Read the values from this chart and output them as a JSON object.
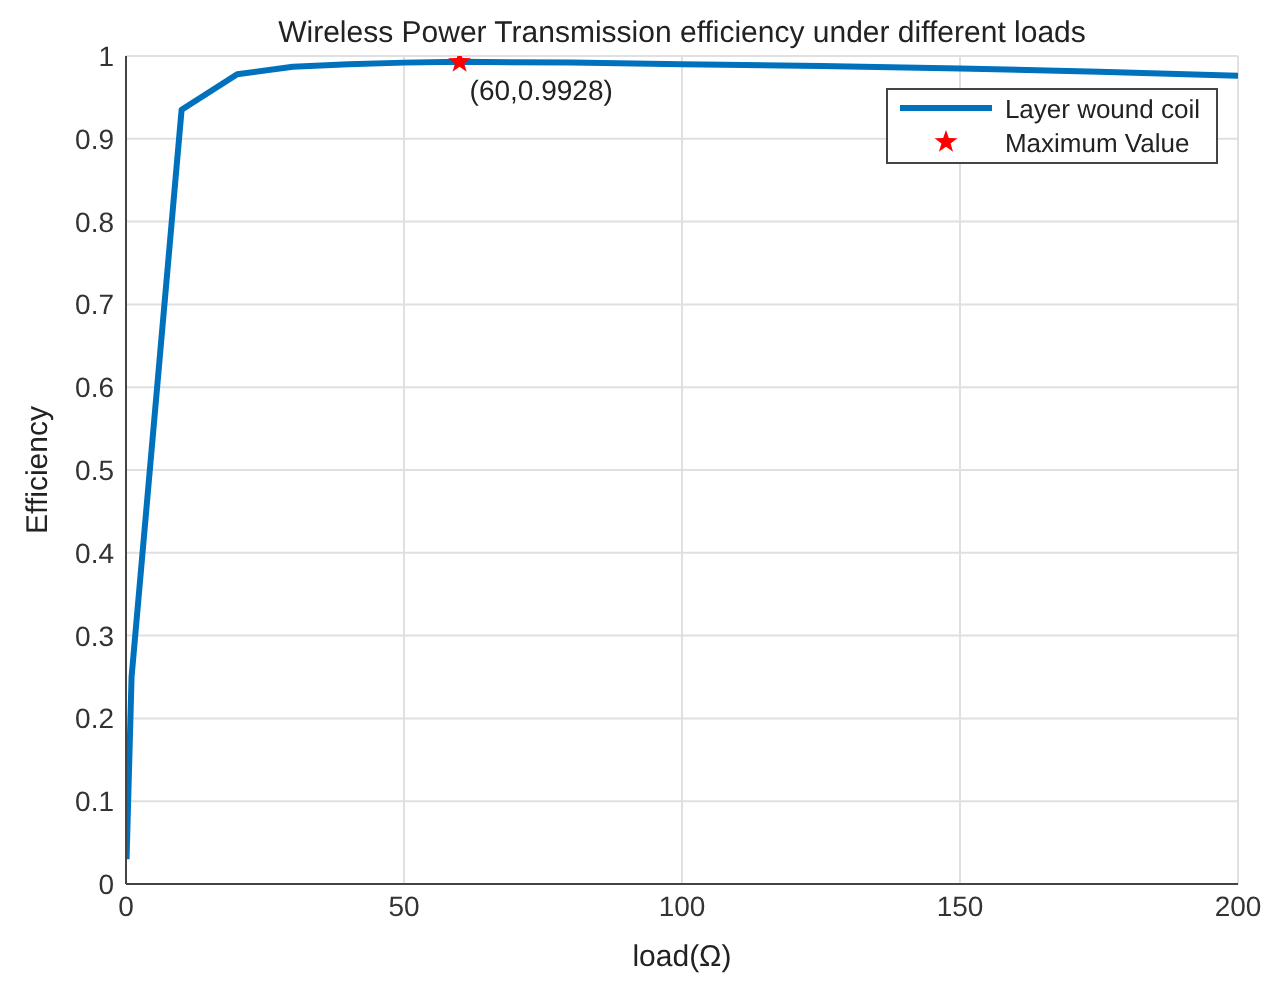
{
  "chart_data": {
    "type": "line",
    "title": "Wireless Power Transmission efficiency under different loads",
    "xlabel": "load(Ω)",
    "ylabel": "Efficiency",
    "xlim": [
      0,
      200
    ],
    "xticks": [
      0,
      50,
      100,
      150,
      200
    ],
    "ylim": [
      0,
      1
    ],
    "yticks": [
      0,
      0.1,
      0.2,
      0.3,
      0.4,
      0.5,
      0.6,
      0.7,
      0.8,
      0.9,
      1
    ],
    "grid": true,
    "legend": "top right",
    "series": [
      {
        "name": "Layer wound coil",
        "color": "#0072bd",
        "marker": "none",
        "x": [
          0.1,
          1,
          10,
          20,
          30,
          40,
          50,
          60,
          80,
          100,
          125,
          150,
          175,
          200
        ],
        "values": [
          0.03,
          0.25,
          0.935,
          0.978,
          0.987,
          0.99,
          0.992,
          0.993,
          0.992,
          0.99,
          0.988,
          0.985,
          0.981,
          0.976
        ]
      },
      {
        "name": "Maximum Value",
        "color": "#ff0000",
        "type": "scatter",
        "marker": "star",
        "x": [
          60
        ],
        "values": [
          0.9928
        ]
      }
    ],
    "annotations": [
      {
        "text": "(60,0.9928)",
        "x": 60,
        "y": 0.9928
      }
    ]
  }
}
